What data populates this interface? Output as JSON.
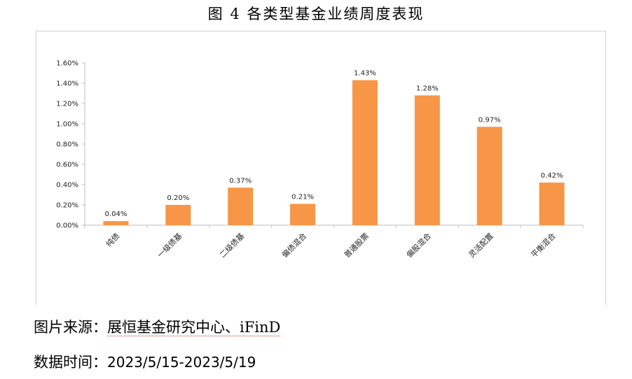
{
  "figure": {
    "title": "图 4 各类型基金业绩周度表现",
    "source_label": "图片来源：",
    "source_value": "展恒基金研究中心、iFinD",
    "date_label": "数据时间：",
    "date_value": "2023/5/15-2023/5/19"
  },
  "colors": {
    "bar": "#F79646",
    "axis": "#bfbfbf"
  },
  "chart_data": {
    "type": "bar",
    "title": "",
    "xlabel": "",
    "ylabel": "",
    "categories": [
      "纯债",
      "一级债基",
      "二级债基",
      "偏债混合",
      "普通股票",
      "偏股混合",
      "灵活配置",
      "平衡混合"
    ],
    "values": [
      0.04,
      0.2,
      0.37,
      0.21,
      1.43,
      1.28,
      0.97,
      0.42
    ],
    "data_labels": [
      "0.04%",
      "0.20%",
      "0.37%",
      "0.21%",
      "1.43%",
      "1.28%",
      "0.97%",
      "0.42%"
    ],
    "y_ticks": [
      "0.00%",
      "0.20%",
      "0.40%",
      "0.60%",
      "0.80%",
      "1.00%",
      "1.20%",
      "1.40%",
      "1.60%"
    ],
    "ylim": [
      0,
      1.6
    ],
    "unit": "%",
    "grid": false,
    "legend": "none"
  }
}
